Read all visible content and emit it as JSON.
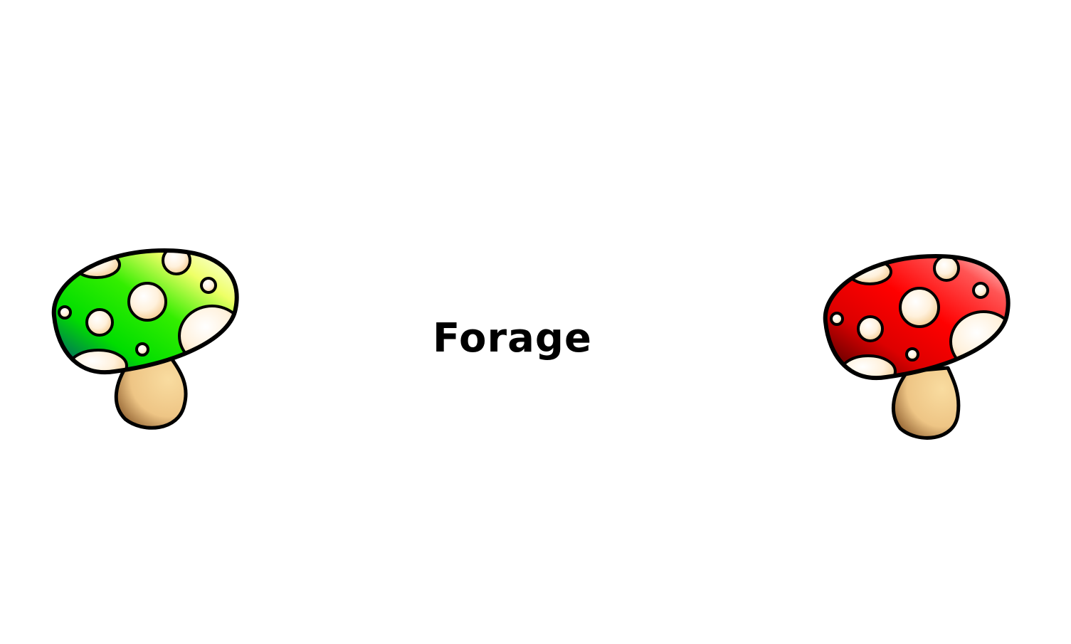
{
  "screen": {
    "title": "Forage",
    "background_color": "#ffffff"
  },
  "mushrooms": [
    {
      "id": "green",
      "icon": "green-mushroom-icon",
      "cap_colors": [
        "#00ff00",
        "#ffff55",
        "#001a8c"
      ],
      "stem_color": "#f5d08a",
      "spot_color": "#fff2dc"
    },
    {
      "id": "red",
      "icon": "red-mushroom-icon",
      "cap_colors": [
        "#ff0000",
        "#ffcccc",
        "#3a0000"
      ],
      "stem_color": "#f5d08a",
      "spot_color": "#fff2dc"
    }
  ]
}
